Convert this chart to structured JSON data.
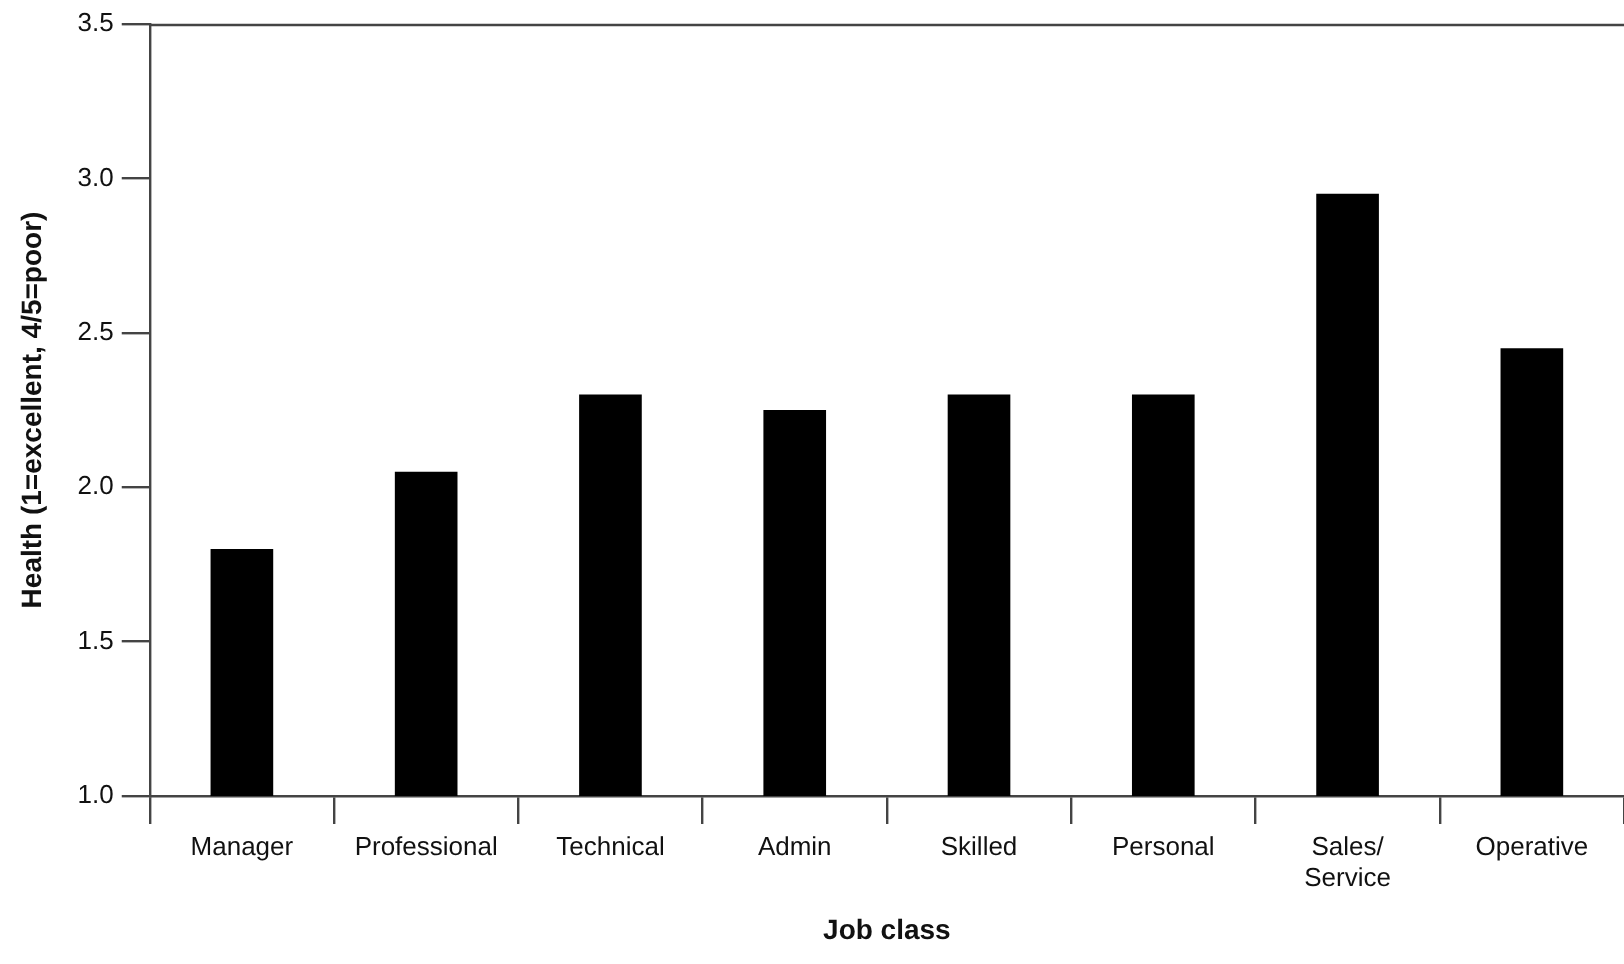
{
  "chart_data": {
    "type": "bar",
    "xlabel": "Job class",
    "ylabel": "Health (1=excellent, 4/5=poor)",
    "categories": [
      "Manager",
      "Professional",
      "Technical",
      "Admin",
      "Skilled",
      "Personal",
      "Sales/ Service",
      "Operative"
    ],
    "values": [
      1.8,
      2.05,
      2.3,
      2.25,
      2.3,
      2.3,
      2.95,
      2.45
    ],
    "color": "#000000",
    "ylim": [
      1,
      3.5
    ],
    "yticks": [
      {
        "value": 1,
        "label": "1.0"
      },
      {
        "value": 1.5,
        "label": "1.5"
      },
      {
        "value": 2,
        "label": "2.0"
      },
      {
        "value": 2.5,
        "label": "2.5"
      },
      {
        "value": 3,
        "label": "3.0"
      },
      {
        "value": 3.5,
        "label": "3.5"
      }
    ],
    "grid": false,
    "legend": false
  }
}
